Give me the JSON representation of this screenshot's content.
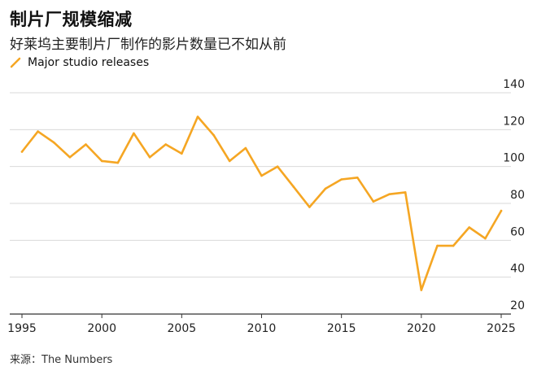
{
  "title": "制片厂规模缩减",
  "subtitle": "好莱坞主要制片厂制作的影片数量已不如从前",
  "source": "来源：The Numbers",
  "colors": {
    "line": "#F5A623",
    "grid": "#d9d9d9",
    "axis": "#333333"
  },
  "chart_data": {
    "type": "line",
    "title": "制片厂规模缩减",
    "subtitle": "好莱坞主要制片厂制作的影片数量已不如从前",
    "xlabel": "",
    "ylabel": "",
    "x": [
      1995,
      1996,
      1997,
      1998,
      1999,
      2000,
      2001,
      2002,
      2003,
      2004,
      2005,
      2006,
      2007,
      2008,
      2009,
      2010,
      2011,
      2012,
      2013,
      2014,
      2015,
      2016,
      2017,
      2018,
      2019,
      2020,
      2021,
      2022,
      2023,
      2024,
      2025
    ],
    "series": [
      {
        "name": "Major studio releases",
        "values": [
          108,
          119,
          113,
          105,
          112,
          103,
          102,
          118,
          105,
          112,
          107,
          127,
          117,
          103,
          110,
          95,
          100,
          89,
          78,
          88,
          93,
          94,
          81,
          85,
          86,
          33,
          57,
          57,
          67,
          61,
          76
        ]
      }
    ],
    "xlim": [
      1995,
      2025
    ],
    "ylim": [
      20,
      140
    ],
    "x_ticks": [
      1995,
      2000,
      2005,
      2010,
      2015,
      2020,
      2025
    ],
    "y_ticks": [
      40,
      60,
      80,
      100,
      120,
      140
    ],
    "y_tick_labels_shown": [
      20,
      40,
      60,
      80,
      100,
      120,
      140
    ],
    "grid": true,
    "legend": "top-left",
    "y_axis_side": "right"
  }
}
